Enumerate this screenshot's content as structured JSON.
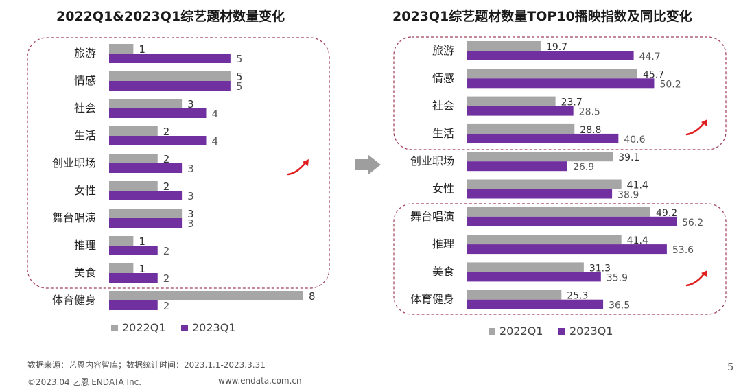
{
  "colors": {
    "series_2022": "#a6a6a6",
    "series_2023": "#7030a0",
    "dashed_box": "#a0405a",
    "trend_arrow": "#e02020",
    "divider_arrow": "#9e9e9e"
  },
  "icons": {
    "divider": "right-arrow-icon",
    "trend": "trend-up-arrow-icon"
  },
  "chart_data": [
    {
      "type": "bar",
      "orientation": "horizontal",
      "title": "2022Q1&2023Q1综艺题材数量变化",
      "categories": [
        "旅游",
        "情感",
        "社会",
        "生活",
        "创业职场",
        "女性",
        "舞台唱演",
        "推理",
        "美食",
        "体育健身"
      ],
      "series": [
        {
          "name": "2022Q1",
          "values": [
            1,
            5,
            3,
            2,
            2,
            2,
            3,
            1,
            1,
            8
          ]
        },
        {
          "name": "2023Q1",
          "values": [
            5,
            5,
            4,
            4,
            3,
            3,
            3,
            2,
            2,
            2
          ]
        }
      ],
      "xlim": [
        0,
        8
      ],
      "grid": false,
      "legend": "bottom",
      "data_labels": true
    },
    {
      "type": "bar",
      "orientation": "horizontal",
      "title": "2023Q1综艺题材数量TOP10播映指数及同比变化",
      "categories": [
        "旅游",
        "情感",
        "社会",
        "生活",
        "创业职场",
        "女性",
        "舞台唱演",
        "推理",
        "美食",
        "体育健身"
      ],
      "series": [
        {
          "name": "2022Q1",
          "values": [
            19.7,
            45.7,
            23.7,
            28.8,
            39.1,
            41.4,
            49.2,
            41.4,
            31.3,
            25.3
          ]
        },
        {
          "name": "2023Q1",
          "values": [
            44.7,
            50.2,
            28.5,
            40.6,
            26.9,
            38.9,
            56.2,
            53.6,
            35.9,
            36.5
          ]
        }
      ],
      "xlim": [
        0,
        56.2
      ],
      "grid": false,
      "legend": "bottom",
      "data_labels": true
    }
  ],
  "footer": {
    "source": "数据来源：艺恩内容智库；数据统计时间：2023.1.1-2023.3.31",
    "copyright": "©2023.04 艺恩 ENDATA Inc.",
    "website": "www.endata.com.cn"
  },
  "page_number": "5"
}
